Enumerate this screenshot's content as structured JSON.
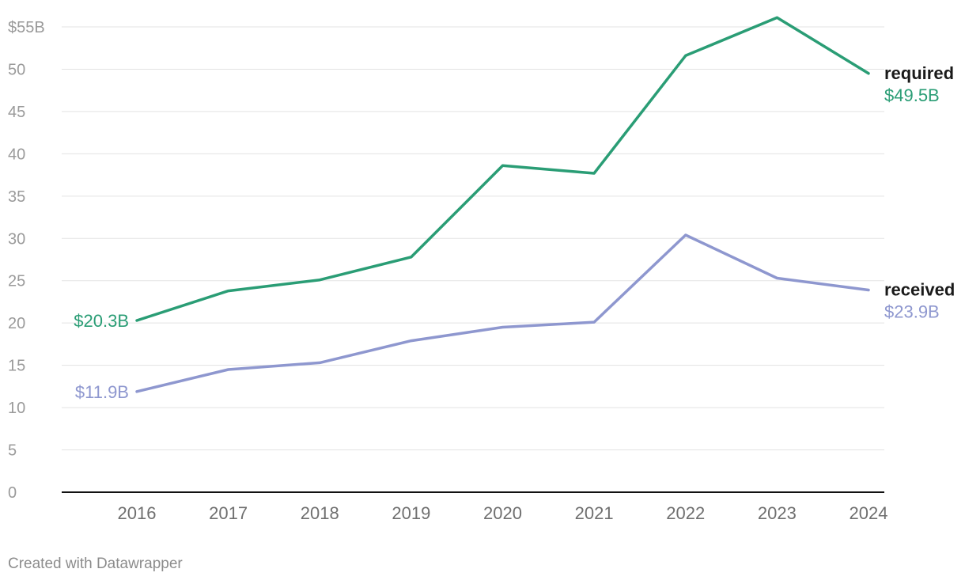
{
  "chart_data": {
    "type": "line",
    "x": [
      "2016",
      "2017",
      "2018",
      "2019",
      "2020",
      "2021",
      "2022",
      "2023",
      "2024"
    ],
    "series": [
      {
        "name": "required",
        "color": "#2a9d75",
        "values": [
          20.3,
          23.8,
          25.1,
          27.8,
          38.6,
          37.7,
          51.6,
          56.1,
          49.5
        ],
        "start_label": "$20.3B",
        "end_value_label": "$49.5B"
      },
      {
        "name": "received",
        "color": "#8e97cf",
        "values": [
          11.9,
          14.5,
          15.3,
          17.9,
          19.5,
          20.1,
          30.4,
          25.3,
          23.9
        ],
        "start_label": "$11.9B",
        "end_value_label": "$23.9B"
      }
    ],
    "ylim": [
      0,
      55
    ],
    "yticks": [
      {
        "value": 0,
        "label": "0"
      },
      {
        "value": 5,
        "label": "5"
      },
      {
        "value": 10,
        "label": "10"
      },
      {
        "value": 15,
        "label": "15"
      },
      {
        "value": 20,
        "label": "20"
      },
      {
        "value": 25,
        "label": "25"
      },
      {
        "value": 30,
        "label": "30"
      },
      {
        "value": 35,
        "label": "35"
      },
      {
        "value": 40,
        "label": "40"
      },
      {
        "value": 45,
        "label": "45"
      },
      {
        "value": 50,
        "label": "50"
      },
      {
        "value": 55,
        "label": "$55B"
      }
    ],
    "grid": true,
    "xlabel": "",
    "ylabel": "",
    "title": ""
  },
  "footer": {
    "credit": "Created with Datawrapper"
  }
}
